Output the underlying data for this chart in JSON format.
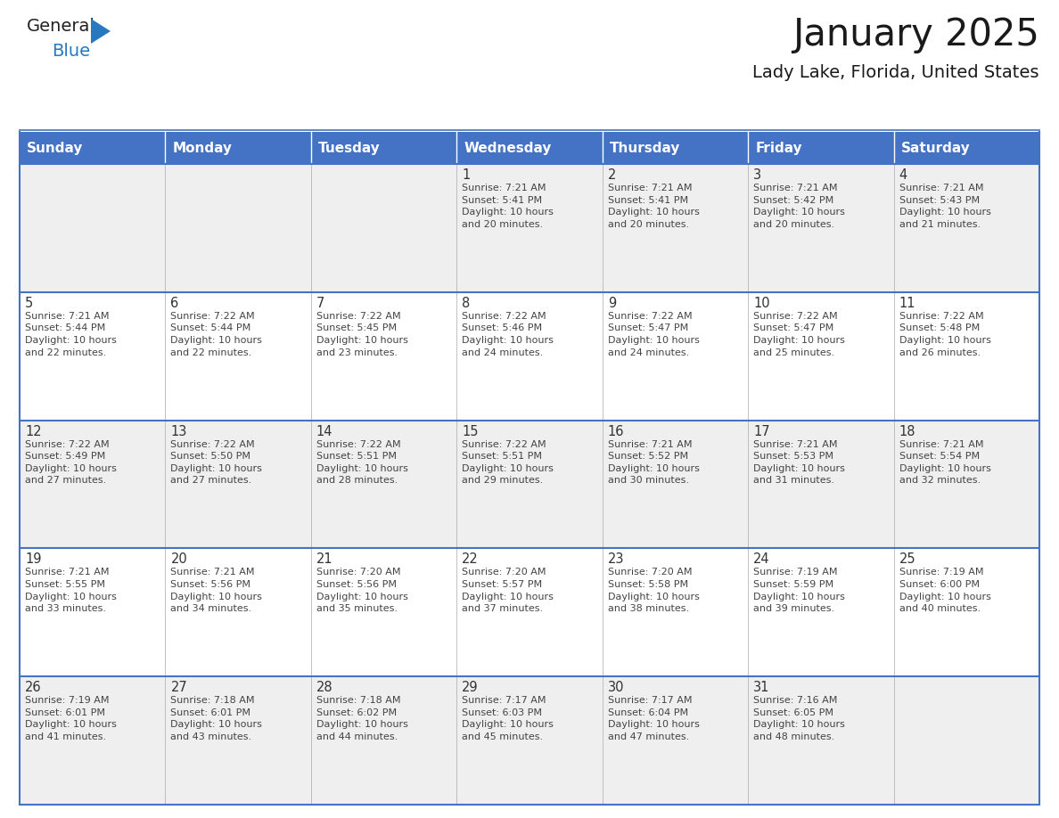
{
  "title": "January 2025",
  "subtitle": "Lady Lake, Florida, United States",
  "header_color": "#4472C4",
  "header_text_color": "#FFFFFF",
  "row_bg": [
    "#EFEFEF",
    "#FFFFFF",
    "#EFEFEF",
    "#FFFFFF",
    "#EFEFEF"
  ],
  "separator_color": "#4472C4",
  "text_color": "#444444",
  "day_number_color": "#333333",
  "days_of_week": [
    "Sunday",
    "Monday",
    "Tuesday",
    "Wednesday",
    "Thursday",
    "Friday",
    "Saturday"
  ],
  "calendar_data": [
    [
      {
        "day": null,
        "info": ""
      },
      {
        "day": null,
        "info": ""
      },
      {
        "day": null,
        "info": ""
      },
      {
        "day": 1,
        "info": "Sunrise: 7:21 AM\nSunset: 5:41 PM\nDaylight: 10 hours\nand 20 minutes."
      },
      {
        "day": 2,
        "info": "Sunrise: 7:21 AM\nSunset: 5:41 PM\nDaylight: 10 hours\nand 20 minutes."
      },
      {
        "day": 3,
        "info": "Sunrise: 7:21 AM\nSunset: 5:42 PM\nDaylight: 10 hours\nand 20 minutes."
      },
      {
        "day": 4,
        "info": "Sunrise: 7:21 AM\nSunset: 5:43 PM\nDaylight: 10 hours\nand 21 minutes."
      }
    ],
    [
      {
        "day": 5,
        "info": "Sunrise: 7:21 AM\nSunset: 5:44 PM\nDaylight: 10 hours\nand 22 minutes."
      },
      {
        "day": 6,
        "info": "Sunrise: 7:22 AM\nSunset: 5:44 PM\nDaylight: 10 hours\nand 22 minutes."
      },
      {
        "day": 7,
        "info": "Sunrise: 7:22 AM\nSunset: 5:45 PM\nDaylight: 10 hours\nand 23 minutes."
      },
      {
        "day": 8,
        "info": "Sunrise: 7:22 AM\nSunset: 5:46 PM\nDaylight: 10 hours\nand 24 minutes."
      },
      {
        "day": 9,
        "info": "Sunrise: 7:22 AM\nSunset: 5:47 PM\nDaylight: 10 hours\nand 24 minutes."
      },
      {
        "day": 10,
        "info": "Sunrise: 7:22 AM\nSunset: 5:47 PM\nDaylight: 10 hours\nand 25 minutes."
      },
      {
        "day": 11,
        "info": "Sunrise: 7:22 AM\nSunset: 5:48 PM\nDaylight: 10 hours\nand 26 minutes."
      }
    ],
    [
      {
        "day": 12,
        "info": "Sunrise: 7:22 AM\nSunset: 5:49 PM\nDaylight: 10 hours\nand 27 minutes."
      },
      {
        "day": 13,
        "info": "Sunrise: 7:22 AM\nSunset: 5:50 PM\nDaylight: 10 hours\nand 27 minutes."
      },
      {
        "day": 14,
        "info": "Sunrise: 7:22 AM\nSunset: 5:51 PM\nDaylight: 10 hours\nand 28 minutes."
      },
      {
        "day": 15,
        "info": "Sunrise: 7:22 AM\nSunset: 5:51 PM\nDaylight: 10 hours\nand 29 minutes."
      },
      {
        "day": 16,
        "info": "Sunrise: 7:21 AM\nSunset: 5:52 PM\nDaylight: 10 hours\nand 30 minutes."
      },
      {
        "day": 17,
        "info": "Sunrise: 7:21 AM\nSunset: 5:53 PM\nDaylight: 10 hours\nand 31 minutes."
      },
      {
        "day": 18,
        "info": "Sunrise: 7:21 AM\nSunset: 5:54 PM\nDaylight: 10 hours\nand 32 minutes."
      }
    ],
    [
      {
        "day": 19,
        "info": "Sunrise: 7:21 AM\nSunset: 5:55 PM\nDaylight: 10 hours\nand 33 minutes."
      },
      {
        "day": 20,
        "info": "Sunrise: 7:21 AM\nSunset: 5:56 PM\nDaylight: 10 hours\nand 34 minutes."
      },
      {
        "day": 21,
        "info": "Sunrise: 7:20 AM\nSunset: 5:56 PM\nDaylight: 10 hours\nand 35 minutes."
      },
      {
        "day": 22,
        "info": "Sunrise: 7:20 AM\nSunset: 5:57 PM\nDaylight: 10 hours\nand 37 minutes."
      },
      {
        "day": 23,
        "info": "Sunrise: 7:20 AM\nSunset: 5:58 PM\nDaylight: 10 hours\nand 38 minutes."
      },
      {
        "day": 24,
        "info": "Sunrise: 7:19 AM\nSunset: 5:59 PM\nDaylight: 10 hours\nand 39 minutes."
      },
      {
        "day": 25,
        "info": "Sunrise: 7:19 AM\nSunset: 6:00 PM\nDaylight: 10 hours\nand 40 minutes."
      }
    ],
    [
      {
        "day": 26,
        "info": "Sunrise: 7:19 AM\nSunset: 6:01 PM\nDaylight: 10 hours\nand 41 minutes."
      },
      {
        "day": 27,
        "info": "Sunrise: 7:18 AM\nSunset: 6:01 PM\nDaylight: 10 hours\nand 43 minutes."
      },
      {
        "day": 28,
        "info": "Sunrise: 7:18 AM\nSunset: 6:02 PM\nDaylight: 10 hours\nand 44 minutes."
      },
      {
        "day": 29,
        "info": "Sunrise: 7:17 AM\nSunset: 6:03 PM\nDaylight: 10 hours\nand 45 minutes."
      },
      {
        "day": 30,
        "info": "Sunrise: 7:17 AM\nSunset: 6:04 PM\nDaylight: 10 hours\nand 47 minutes."
      },
      {
        "day": 31,
        "info": "Sunrise: 7:16 AM\nSunset: 6:05 PM\nDaylight: 10 hours\nand 48 minutes."
      },
      {
        "day": null,
        "info": ""
      }
    ]
  ],
  "logo_general_color": "#222222",
  "logo_blue_color": "#2878C0",
  "logo_triangle_color": "#2878C0"
}
